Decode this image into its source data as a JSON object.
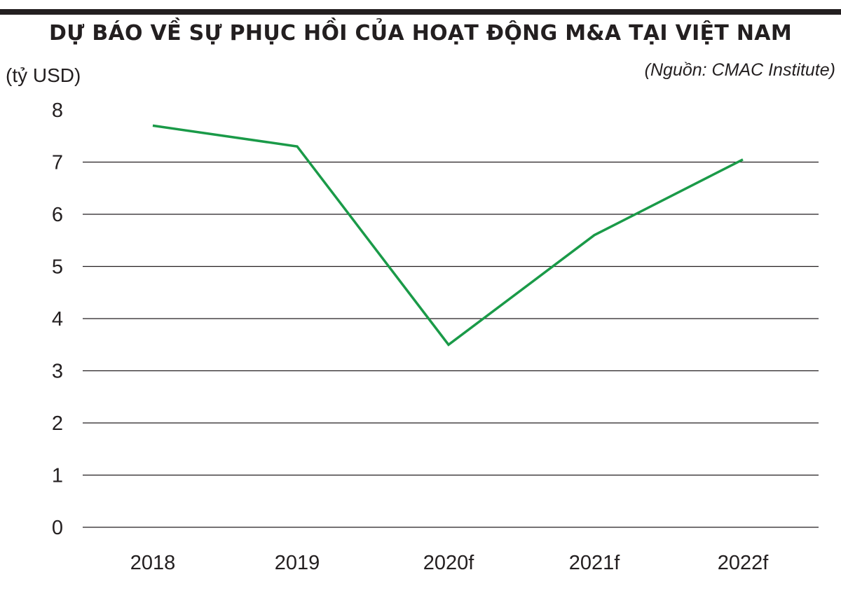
{
  "header": {
    "title": "DỰ BÁO VỀ SỰ PHỤC HỒI CỦA HOẠT ĐỘNG M&A TẠI VIỆT NAM",
    "unit_label": "(tỷ USD)",
    "source": "(Nguồn: CMAC Institute)"
  },
  "colors": {
    "line": "#1a9a48",
    "grid": "#231f20",
    "text": "#231f20"
  },
  "chart_data": {
    "type": "line",
    "title": "DỰ BÁO VỀ SỰ PHỤC HỒI CỦA HOẠT ĐỘNG M&A TẠI VIỆT NAM",
    "ylabel": "(tỷ USD)",
    "xlabel": "",
    "categories": [
      "2018",
      "2019",
      "2020f",
      "2021f",
      "2022f"
    ],
    "series": [
      {
        "values": [
          7.7,
          7.3,
          3.5,
          5.6,
          7.05
        ]
      }
    ],
    "ylim": [
      0,
      8
    ],
    "yticks": [
      0,
      1,
      2,
      3,
      4,
      5,
      6,
      7,
      8
    ],
    "grid": "horizontal",
    "legend": "none"
  }
}
